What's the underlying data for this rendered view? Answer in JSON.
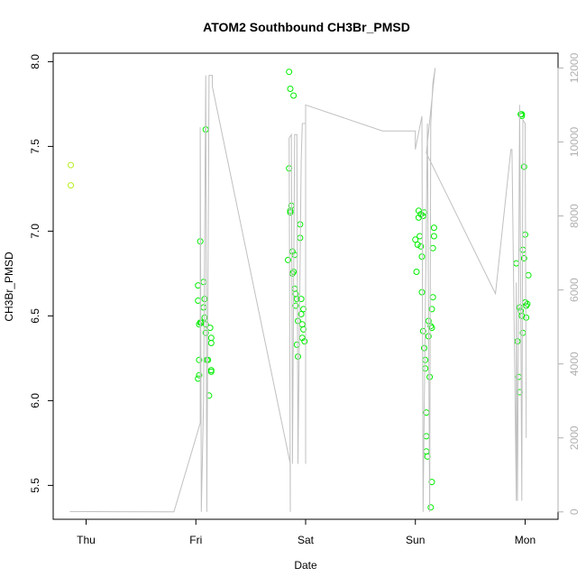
{
  "chart_data": {
    "type": "scatter",
    "title": "ATOM2 Southbound CH3Br_PMSD",
    "xlabel": "Date",
    "ylabel": "CH3Br_PMSD",
    "x_ticks": [
      {
        "label": "Thu",
        "day": 0
      },
      {
        "label": "Fri",
        "day": 1
      },
      {
        "label": "Sat",
        "day": 2
      },
      {
        "label": "Sun",
        "day": 3
      },
      {
        "label": "Mon",
        "day": 4
      }
    ],
    "xlim": [
      -0.3,
      4.3
    ],
    "ylim": [
      5.3,
      8.05
    ],
    "y_ticks": [
      "5.5",
      "6.0",
      "6.5",
      "7.0",
      "7.5",
      "8.0"
    ],
    "y2lim": [
      -200,
      12400
    ],
    "y2_ticks": [
      "0",
      "2000",
      "4000",
      "6000",
      "8000",
      "10000",
      "12000"
    ],
    "series": [
      {
        "marker": "circle",
        "color": "#00ee00",
        "points": [
          [
            -0.14,
            7.39
          ],
          [
            -0.14,
            7.27
          ],
          [
            1.02,
            6.68
          ],
          [
            1.02,
            6.59
          ],
          [
            1.03,
            6.45
          ],
          [
            1.03,
            6.15
          ],
          [
            1.02,
            6.13
          ],
          [
            1.04,
            6.94
          ],
          [
            1.04,
            6.46
          ],
          [
            1.05,
            6.46
          ],
          [
            1.03,
            6.24
          ],
          [
            1.07,
            6.7
          ],
          [
            1.07,
            6.55
          ],
          [
            1.08,
            6.6
          ],
          [
            1.08,
            6.49
          ],
          [
            1.09,
            7.6
          ],
          [
            1.09,
            6.45
          ],
          [
            1.09,
            6.4
          ],
          [
            1.1,
            6.24
          ],
          [
            1.11,
            6.24
          ],
          [
            1.12,
            6.03
          ],
          [
            1.13,
            6.43
          ],
          [
            1.14,
            6.17
          ],
          [
            1.14,
            6.37
          ],
          [
            1.14,
            6.34
          ],
          [
            1.14,
            6.18
          ],
          [
            1.85,
            7.94
          ],
          [
            1.86,
            7.84
          ],
          [
            1.89,
            7.8
          ],
          [
            1.85,
            7.37
          ],
          [
            1.86,
            7.11
          ],
          [
            1.86,
            7.12
          ],
          [
            1.87,
            7.15
          ],
          [
            1.84,
            6.83
          ],
          [
            1.88,
            6.75
          ],
          [
            1.89,
            6.76
          ],
          [
            1.88,
            6.88
          ],
          [
            1.9,
            6.86
          ],
          [
            1.9,
            6.66
          ],
          [
            1.91,
            6.63
          ],
          [
            1.92,
            6.6
          ],
          [
            1.91,
            6.56
          ],
          [
            1.93,
            6.47
          ],
          [
            1.92,
            6.33
          ],
          [
            1.93,
            6.26
          ],
          [
            1.95,
            7.04
          ],
          [
            1.95,
            6.96
          ],
          [
            1.96,
            6.6
          ],
          [
            1.96,
            6.51
          ],
          [
            1.97,
            6.45
          ],
          [
            1.97,
            6.37
          ],
          [
            1.98,
            6.42
          ],
          [
            1.98,
            6.54
          ],
          [
            1.99,
            6.35
          ],
          [
            3.0,
            6.95
          ],
          [
            3.01,
            6.76
          ],
          [
            3.02,
            6.92
          ],
          [
            3.03,
            7.12
          ],
          [
            3.03,
            7.08
          ],
          [
            3.04,
            6.97
          ],
          [
            3.05,
            7.1
          ],
          [
            3.05,
            6.91
          ],
          [
            3.06,
            6.64
          ],
          [
            3.06,
            6.85
          ],
          [
            3.07,
            6.41
          ],
          [
            3.08,
            6.31
          ],
          [
            3.09,
            6.24
          ],
          [
            3.09,
            6.19
          ],
          [
            3.1,
            5.93
          ],
          [
            3.1,
            5.79
          ],
          [
            3.1,
            5.7
          ],
          [
            3.11,
            5.67
          ],
          [
            3.12,
            6.38
          ],
          [
            3.12,
            6.47
          ],
          [
            3.13,
            6.14
          ],
          [
            3.14,
            6.44
          ],
          [
            3.15,
            6.54
          ],
          [
            3.15,
            6.43
          ],
          [
            3.15,
            5.52
          ],
          [
            3.14,
            5.37
          ],
          [
            3.16,
            6.9
          ],
          [
            3.17,
            7.02
          ],
          [
            3.17,
            6.97
          ],
          [
            3.16,
            6.61
          ],
          [
            3.08,
            7.11
          ],
          [
            3.07,
            7.09
          ],
          [
            3.92,
            6.81
          ],
          [
            3.93,
            6.35
          ],
          [
            3.94,
            6.14
          ],
          [
            3.95,
            6.05
          ],
          [
            3.95,
            6.55
          ],
          [
            3.96,
            6.53
          ],
          [
            3.97,
            6.5
          ],
          [
            3.98,
            6.4
          ],
          [
            3.98,
            6.89
          ],
          [
            3.99,
            6.84
          ],
          [
            4.0,
            6.98
          ],
          [
            4.0,
            6.58
          ],
          [
            4.01,
            6.56
          ],
          [
            4.02,
            6.57
          ],
          [
            4.01,
            6.49
          ],
          [
            4.03,
            6.74
          ],
          [
            3.96,
            7.69
          ],
          [
            3.97,
            7.69
          ],
          [
            3.97,
            7.68
          ],
          [
            3.99,
            7.38
          ]
        ]
      },
      {
        "type": "line",
        "axis": "right",
        "color": "#c0c0c0",
        "points": [
          [
            -0.15,
            9.7
          ],
          [
            -0.15,
            8.9
          ],
          [
            0.8,
            0.3
          ],
          [
            1.04,
            2400
          ],
          [
            1.04,
            10400
          ],
          [
            1.05,
            0
          ],
          [
            1.07,
            3000
          ],
          [
            1.09,
            11800
          ],
          [
            1.1,
            0
          ],
          [
            1.12,
            11800
          ],
          [
            1.15,
            11800
          ],
          [
            1.15,
            11500
          ],
          [
            1.86,
            1300
          ],
          [
            1.86,
            0
          ],
          [
            1.85,
            10100
          ],
          [
            1.87,
            10200
          ],
          [
            1.88,
            1300
          ],
          [
            1.9,
            10200
          ],
          [
            1.92,
            10200
          ],
          [
            1.93,
            1300
          ],
          [
            1.96,
            9500
          ],
          [
            1.97,
            10500
          ],
          [
            2.0,
            10500
          ],
          [
            2.0,
            1300
          ],
          [
            2.0,
            11000
          ],
          [
            2.7,
            10300
          ],
          [
            3.0,
            10300
          ],
          [
            3.0,
            9800
          ],
          [
            3.06,
            10700
          ],
          [
            3.07,
            0
          ],
          [
            3.11,
            10500
          ],
          [
            3.13,
            0
          ],
          [
            3.14,
            10500
          ],
          [
            3.16,
            11600
          ],
          [
            3.18,
            12000
          ],
          [
            3.1,
            9700
          ],
          [
            3.73,
            5900
          ],
          [
            3.87,
            9800
          ],
          [
            3.88,
            9800
          ],
          [
            3.92,
            300
          ],
          [
            3.92,
            6200
          ],
          [
            3.93,
            300
          ],
          [
            3.95,
            11000
          ],
          [
            3.97,
            300
          ],
          [
            3.98,
            10600
          ],
          [
            4.0,
            10500
          ],
          [
            4.01,
            2000
          ]
        ]
      }
    ],
    "legend": "none",
    "grid": false
  }
}
